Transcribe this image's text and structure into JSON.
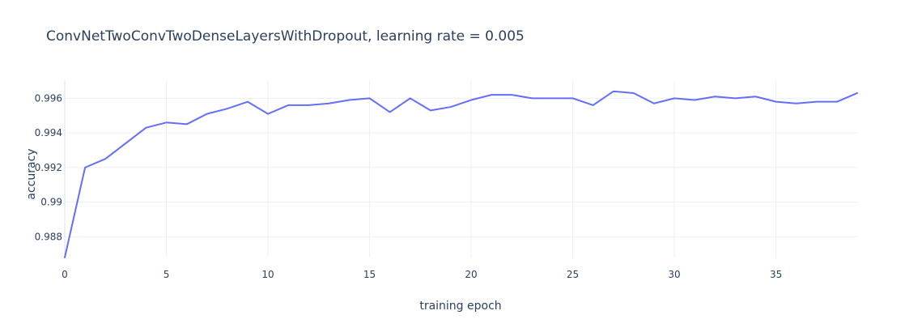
{
  "chart_data": {
    "type": "line",
    "title": "ConvNetTwoConvTwoDenseLayersWithDropout, learning rate = 0.005",
    "xlabel": "training epoch",
    "ylabel": "accuracy",
    "xlim": [
      0,
      39
    ],
    "ylim": [
      0.9868,
      0.997
    ],
    "xticks": [
      0,
      5,
      10,
      15,
      20,
      25,
      30,
      35
    ],
    "xtick_labels": [
      "0",
      "5",
      "10",
      "15",
      "20",
      "25",
      "30",
      "35"
    ],
    "yticks": [
      0.988,
      0.99,
      0.992,
      0.994,
      0.996
    ],
    "ytick_labels": [
      "0.988",
      "0.99",
      "0.992",
      "0.994",
      "0.996"
    ],
    "grid": true,
    "series": [
      {
        "color": "#636efa",
        "x": [
          0,
          1,
          2,
          3,
          4,
          5,
          6,
          7,
          8,
          9,
          10,
          11,
          12,
          13,
          14,
          15,
          16,
          17,
          18,
          19,
          20,
          21,
          22,
          23,
          24,
          25,
          26,
          27,
          28,
          29,
          30,
          31,
          32,
          33,
          34,
          35,
          36,
          37,
          38,
          39
        ],
        "values": [
          0.9868,
          0.992,
          0.9925,
          0.9934,
          0.9943,
          0.9946,
          0.9945,
          0.9951,
          0.9954,
          0.9958,
          0.9951,
          0.9956,
          0.9956,
          0.9957,
          0.9959,
          0.996,
          0.9952,
          0.996,
          0.9953,
          0.9955,
          0.9959,
          0.9962,
          0.9962,
          0.996,
          0.996,
          0.996,
          0.9956,
          0.9964,
          0.9963,
          0.9957,
          0.996,
          0.9959,
          0.9961,
          0.996,
          0.9961,
          0.9958,
          0.9957,
          0.9958,
          0.9958,
          0.9963
        ]
      }
    ]
  }
}
